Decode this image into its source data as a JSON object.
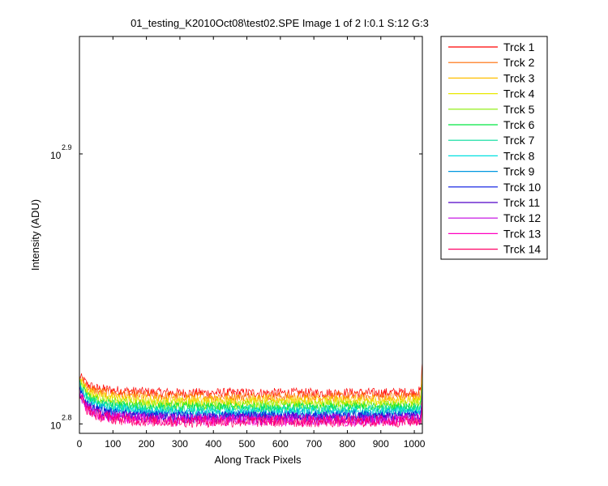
{
  "chart_data": {
    "type": "line",
    "title": "01_testing_K2010Oct08\\test02.SPE  Image 1 of 2  I:0.1  S:12  G:3",
    "xlabel": "Along Track Pixels",
    "ylabel": "Intensity (ADU)",
    "xlim": [
      0,
      1024
    ],
    "ylim_log10": [
      2.7965,
      2.9435
    ],
    "yscale": "log",
    "x_ticks": [
      0,
      100,
      200,
      300,
      400,
      500,
      600,
      700,
      800,
      900,
      1000
    ],
    "x_tick_labels": [
      "0",
      "100",
      "200",
      "300",
      "400",
      "500",
      "600",
      "700",
      "800",
      "900",
      "1000"
    ],
    "y_ticks_log10": [
      2.8,
      2.9
    ],
    "y_tick_labels": [
      {
        "base": "10",
        "exp": "2.8"
      },
      {
        "base": "10",
        "exp": "2.9"
      }
    ],
    "grid": false,
    "legend_position": "outside-right",
    "note_values": "Each series is a noisy trace; values are log10 intensity at representative pixels, start spike near x=0 then a flat noisy level, with a spike at the right edge.",
    "x": [
      0,
      10,
      25,
      50,
      100,
      200,
      300,
      400,
      500,
      600,
      700,
      800,
      900,
      1000,
      1020,
      1024
    ],
    "series": [
      {
        "name": "Trck 1",
        "color": "#ff0000",
        "values": [
          2.8175,
          2.8165,
          2.8145,
          2.8132,
          2.8125,
          2.8118,
          2.8115,
          2.8115,
          2.8115,
          2.8115,
          2.8115,
          2.8115,
          2.8115,
          2.8118,
          2.8122,
          2.8245
        ],
        "noise": 0.0018
      },
      {
        "name": "Trck 2",
        "color": "#ff6a00",
        "values": [
          2.817,
          2.8158,
          2.8135,
          2.8122,
          2.8112,
          2.8105,
          2.8102,
          2.8102,
          2.8102,
          2.8102,
          2.8102,
          2.8102,
          2.8102,
          2.8104,
          2.8108,
          2.822
        ],
        "noise": 0.0018
      },
      {
        "name": "Trck 3",
        "color": "#ffc000",
        "values": [
          2.8165,
          2.815,
          2.8125,
          2.8112,
          2.81,
          2.8092,
          2.809,
          2.809,
          2.809,
          2.809,
          2.809,
          2.809,
          2.809,
          2.8092,
          2.8096,
          2.82
        ],
        "noise": 0.0018
      },
      {
        "name": "Trck 4",
        "color": "#e8e800",
        "values": [
          2.816,
          2.8142,
          2.8117,
          2.8103,
          2.809,
          2.8082,
          2.808,
          2.808,
          2.808,
          2.808,
          2.808,
          2.808,
          2.808,
          2.8082,
          2.8086,
          2.8185
        ],
        "noise": 0.0018
      },
      {
        "name": "Trck 5",
        "color": "#88ee00",
        "values": [
          2.8155,
          2.8135,
          2.8108,
          2.8094,
          2.808,
          2.8072,
          2.807,
          2.807,
          2.807,
          2.807,
          2.807,
          2.807,
          2.807,
          2.8072,
          2.8076,
          2.817
        ],
        "noise": 0.0018
      },
      {
        "name": "Trck 6",
        "color": "#00e640",
        "values": [
          2.815,
          2.8128,
          2.81,
          2.8085,
          2.8071,
          2.8063,
          2.8061,
          2.8061,
          2.8061,
          2.8061,
          2.8061,
          2.8061,
          2.8061,
          2.8063,
          2.8067,
          2.8155
        ],
        "noise": 0.0018
      },
      {
        "name": "Trck 7",
        "color": "#00dc9c",
        "values": [
          2.8145,
          2.8122,
          2.8093,
          2.8078,
          2.8063,
          2.8055,
          2.8053,
          2.8053,
          2.8053,
          2.8053,
          2.8053,
          2.8053,
          2.8053,
          2.8055,
          2.8059,
          2.8145
        ],
        "noise": 0.0018
      },
      {
        "name": "Trck 8",
        "color": "#00e0e0",
        "values": [
          2.814,
          2.8115,
          2.8086,
          2.807,
          2.8055,
          2.8047,
          2.8045,
          2.8045,
          2.8045,
          2.8045,
          2.8045,
          2.8045,
          2.8045,
          2.8047,
          2.8051,
          2.8135
        ],
        "noise": 0.0018
      },
      {
        "name": "Trck 9",
        "color": "#0098e0",
        "values": [
          2.8135,
          2.8108,
          2.8078,
          2.8062,
          2.8047,
          2.8039,
          2.8037,
          2.8037,
          2.8037,
          2.8037,
          2.8037,
          2.8037,
          2.8037,
          2.8039,
          2.8043,
          2.8125
        ],
        "noise": 0.0018
      },
      {
        "name": "Trck 10",
        "color": "#0010e0",
        "values": [
          2.813,
          2.81,
          2.807,
          2.8054,
          2.8039,
          2.8031,
          2.8029,
          2.8029,
          2.8029,
          2.8029,
          2.8029,
          2.8029,
          2.8029,
          2.8031,
          2.8035,
          2.8115
        ],
        "noise": 0.0018
      },
      {
        "name": "Trck 11",
        "color": "#5000c8",
        "values": [
          2.8125,
          2.8095,
          2.8064,
          2.8048,
          2.8033,
          2.8025,
          2.8023,
          2.8023,
          2.8023,
          2.8023,
          2.8023,
          2.8023,
          2.8023,
          2.8025,
          2.8029,
          2.8108
        ],
        "noise": 0.002
      },
      {
        "name": "Trck 12",
        "color": "#c000e0",
        "values": [
          2.812,
          2.809,
          2.8058,
          2.8042,
          2.8027,
          2.8019,
          2.8017,
          2.8017,
          2.8017,
          2.8017,
          2.8017,
          2.8017,
          2.8017,
          2.8019,
          2.8023,
          2.81
        ],
        "noise": 0.0022
      },
      {
        "name": "Trck 13",
        "color": "#ff00c0",
        "values": [
          2.8115,
          2.8085,
          2.8053,
          2.8037,
          2.8022,
          2.8014,
          2.8012,
          2.8012,
          2.8012,
          2.8012,
          2.8012,
          2.8012,
          2.8012,
          2.8014,
          2.8018,
          2.8095
        ],
        "noise": 0.0022
      },
      {
        "name": "Trck 14",
        "color": "#ff0066",
        "values": [
          2.8112,
          2.8082,
          2.805,
          2.8034,
          2.8019,
          2.8011,
          2.8009,
          2.8009,
          2.8009,
          2.8009,
          2.8009,
          2.8009,
          2.8009,
          2.8011,
          2.8015,
          2.8092
        ],
        "noise": 0.0022
      }
    ]
  }
}
